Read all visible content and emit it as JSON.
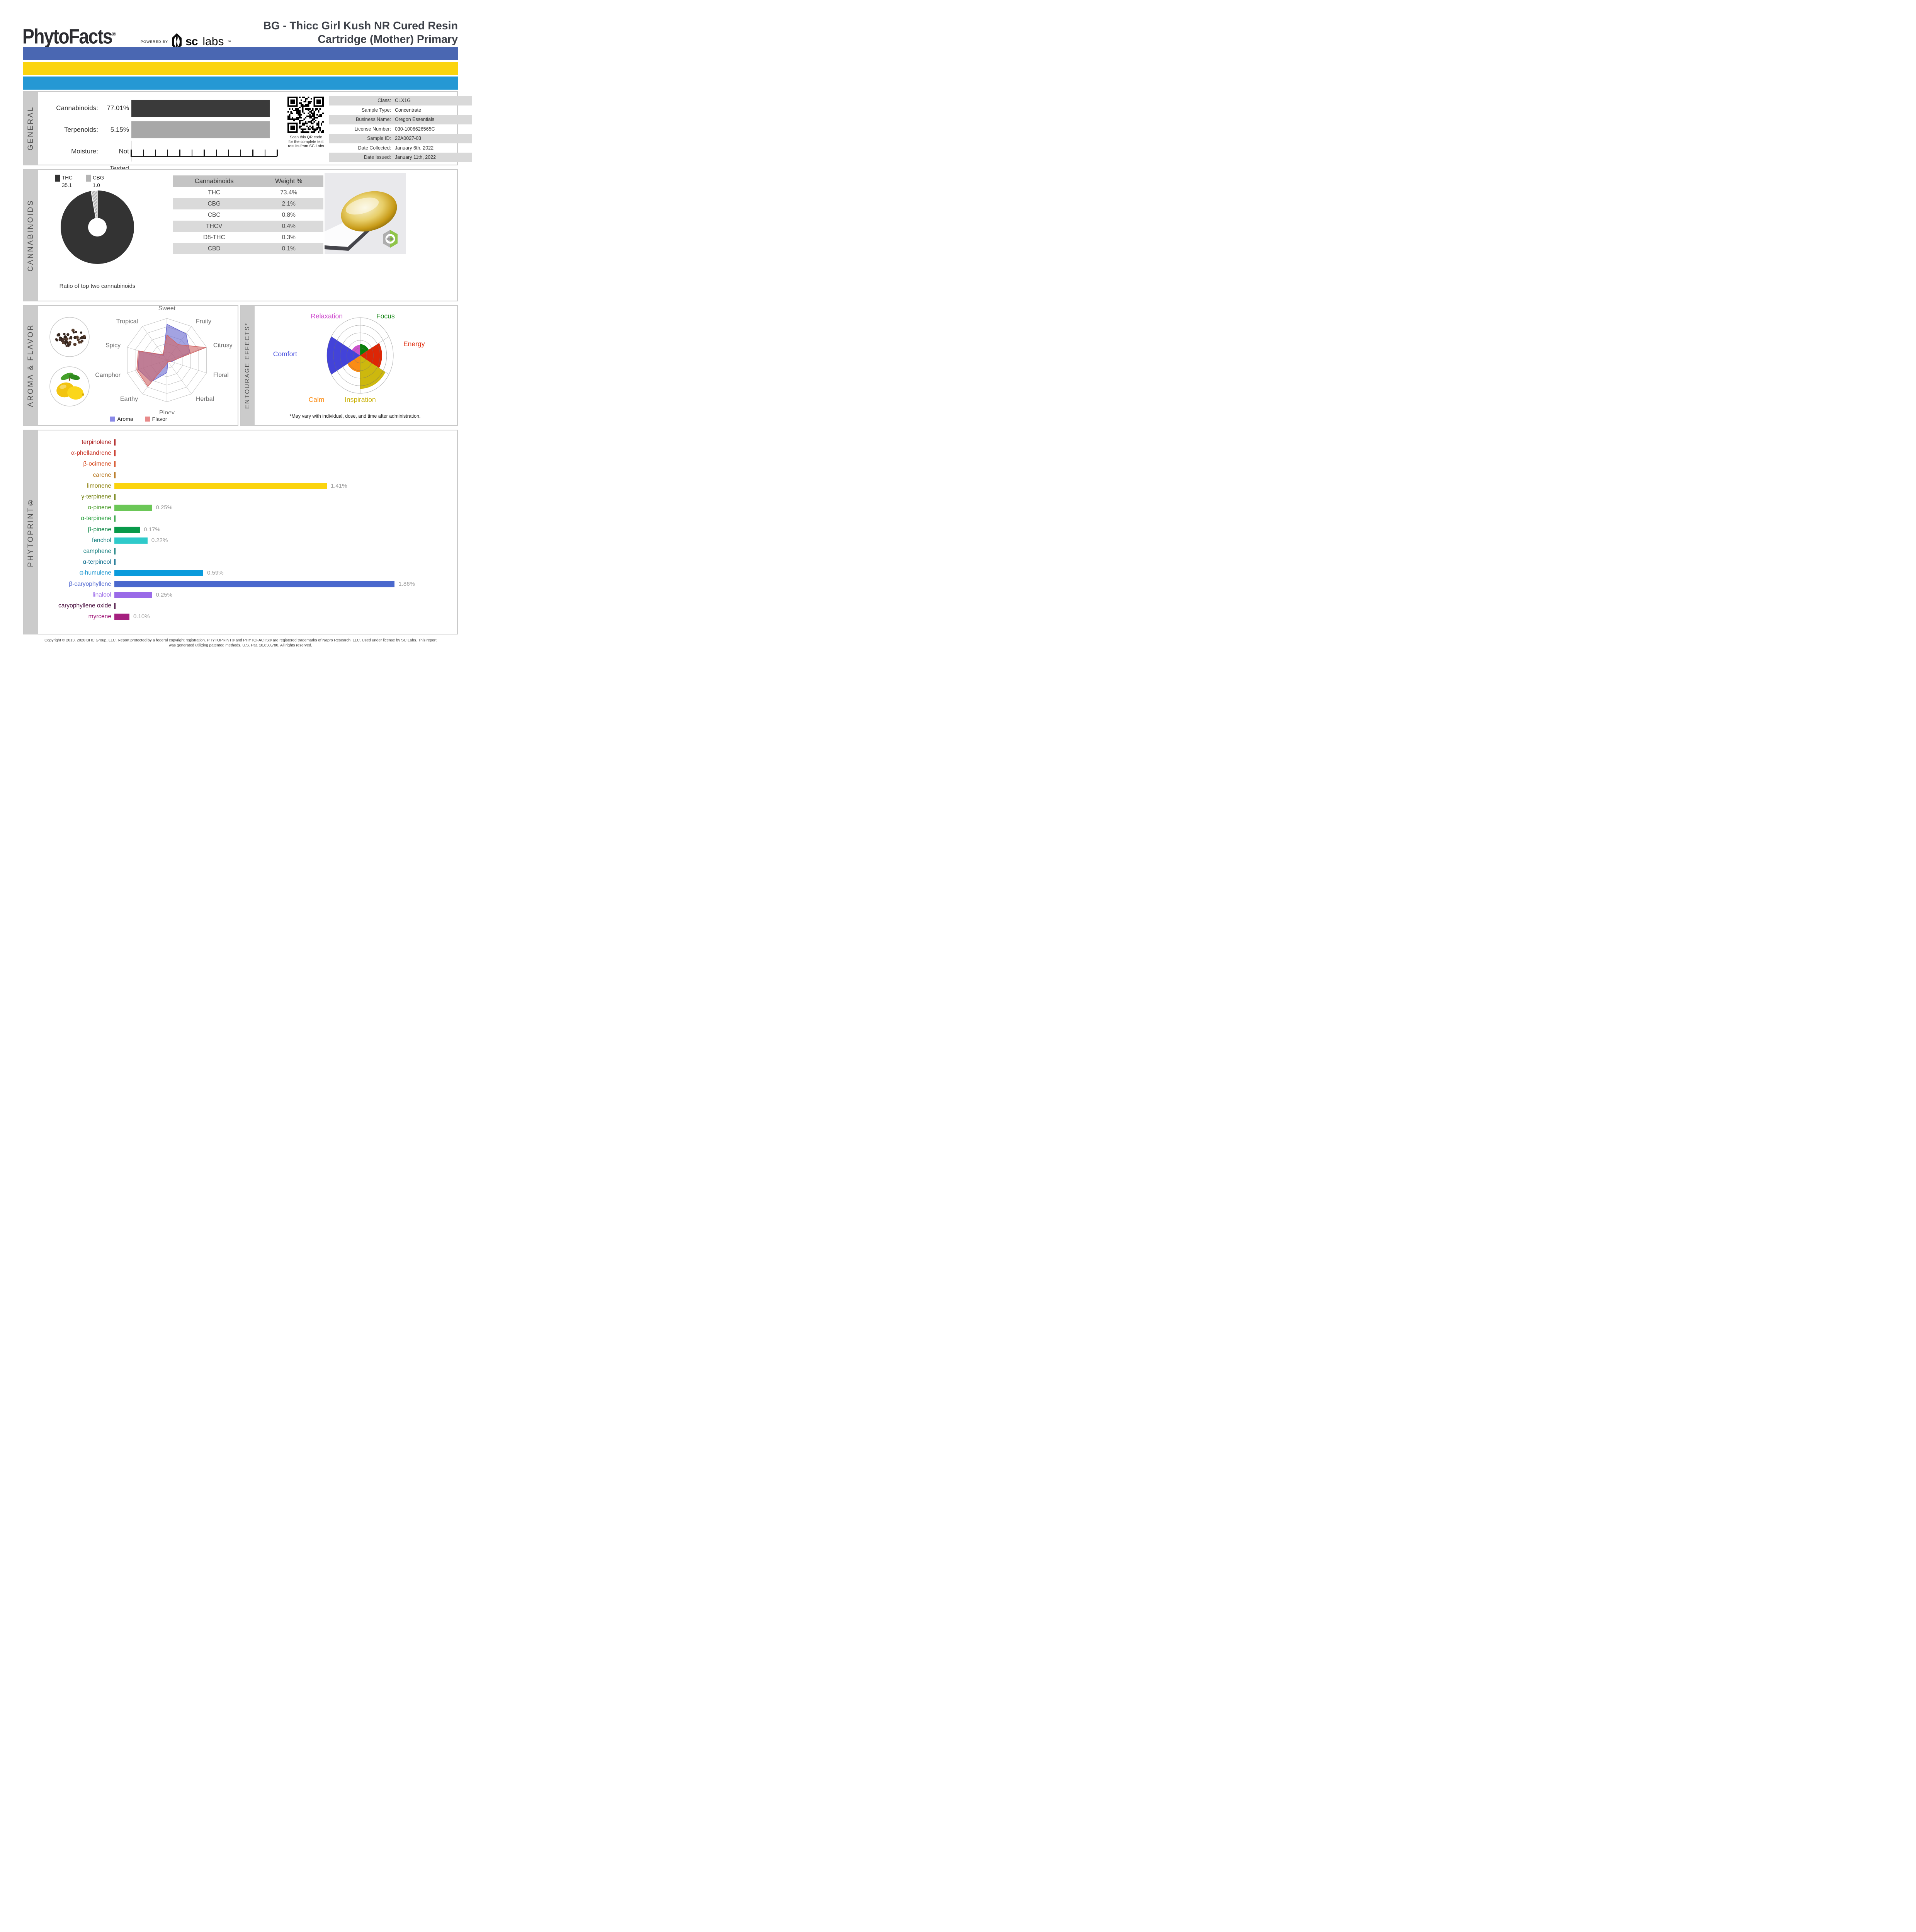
{
  "header": {
    "brand": "PhytoFacts",
    "brand_mark": "®",
    "powered_by": "POWERED BY",
    "sclabs": {
      "sc": "sc",
      "labs": "labs",
      "tm": "™"
    },
    "title_line1": "BG - Thicc Girl Kush NR Cured Resin",
    "title_line2": "Cartridge (Mother) Primary",
    "stripe_colors": [
      "#4a67b2",
      "#fbd40e",
      "#2598d4"
    ]
  },
  "general": {
    "section_label": "GENERAL",
    "rows": [
      {
        "label": "Cannabinoids:",
        "value": "77.01%"
      },
      {
        "label": "Terpenoids:",
        "value": "5.15%"
      },
      {
        "label": "Moisture:",
        "value": "Not Tested"
      }
    ],
    "bar_colors": [
      "#3a3a3a",
      "#a8a8a8"
    ],
    "qr_caption_lines": [
      "Scan this QR code",
      "for the complete test",
      "results from SC Labs"
    ],
    "info_rows": [
      {
        "label": "Class:",
        "value": "CLX1G"
      },
      {
        "label": "Sample Type:",
        "value": "Concentrate"
      },
      {
        "label": "Business Name:",
        "value": "Oregon Essentials"
      },
      {
        "label": "License Number:",
        "value": "030-1006626565C"
      },
      {
        "label": "Sample ID:",
        "value": "22A0027-03"
      },
      {
        "label": "Date Collected:",
        "value": "January 6th, 2022"
      },
      {
        "label": "Date Issued:",
        "value": "January 11th, 2022"
      }
    ]
  },
  "cannabinoids": {
    "section_label": "CANNABINOIDS",
    "legend": [
      {
        "name": "THC",
        "value": "35.1",
        "color": "#333333"
      },
      {
        "name": "CBG",
        "value": "1.0",
        "color": "#b5b5b5"
      }
    ],
    "donut": {
      "thc": 35.1,
      "cbg": 1.0,
      "thc_color": "#333333",
      "cbg_color": "#b5b5b5"
    },
    "caption": "Ratio of top two cannabinoids",
    "table": {
      "headers": [
        "Cannabinoids",
        "Weight %"
      ],
      "rows": [
        [
          "THC",
          "73.4%"
        ],
        [
          "CBG",
          "2.1%"
        ],
        [
          "CBC",
          "0.8%"
        ],
        [
          "THCV",
          "0.4%"
        ],
        [
          "D8-THC",
          "0.3%"
        ],
        [
          "CBD",
          "0.1%"
        ]
      ]
    },
    "photo_watermark": "sclabs"
  },
  "aroma_flavor": {
    "section_label": "AROMA & FLAVOR",
    "axes": [
      "Sweet",
      "Fruity",
      "Citrusy",
      "Floral",
      "Herbal",
      "Piney",
      "Earthy",
      "Camphor",
      "Spicy",
      "Tropical"
    ],
    "scale_max": 5,
    "series": [
      {
        "name": "Aroma",
        "color": "#6b6bd0",
        "values": [
          4.3,
          3.9,
          2.9,
          0.6,
          0.2,
          1.5,
          3.2,
          3.6,
          3.5,
          0.7
        ]
      },
      {
        "name": "Flavor",
        "color": "#d06666",
        "values": [
          3.0,
          2.3,
          4.9,
          0.5,
          0.2,
          0.4,
          3.9,
          3.8,
          3.6,
          0.8
        ]
      }
    ],
    "legend": [
      {
        "label": "Aroma",
        "swatch": "#8a8ae8"
      },
      {
        "label": "Flavor",
        "swatch": "#e88a8a"
      }
    ]
  },
  "entourage": {
    "section_label": "ENTOURAGE EFFECTS*",
    "scale_max": 5,
    "sectors": [
      {
        "label": "Focus",
        "value": 1.5,
        "fill": "#0a7e0a",
        "label_color": "#0a7e0a"
      },
      {
        "label": "Energy",
        "value": 3.3,
        "fill": "#dd2605",
        "label_color": "#dd2605"
      },
      {
        "label": "Inspiration",
        "value": 4.4,
        "fill": "#cdb80e",
        "label_color": "#c9b005"
      },
      {
        "label": "Calm",
        "value": 2.2,
        "fill": "#fb8c14",
        "label_color": "#fb8c14"
      },
      {
        "label": "Comfort",
        "value": 5.0,
        "fill": "#4343d9",
        "label_color": "#4d55e0"
      },
      {
        "label": "Relaxation",
        "value": 1.4,
        "fill": "#cc55cc",
        "label_color": "#cc44cc"
      }
    ],
    "footnote": "*May vary with individual, dose, and time after administration."
  },
  "phytoprint": {
    "section_label": "PHYTOPRINT®",
    "bars": [
      {
        "name": "terpinolene",
        "value": 0,
        "display": "",
        "label_color": "#a81414",
        "bar_color": "#a81414"
      },
      {
        "name": "α-phellandrene",
        "value": 0,
        "display": "",
        "label_color": "#c32314",
        "bar_color": "#c32314"
      },
      {
        "name": "β-ocimene",
        "value": 0,
        "display": "",
        "label_color": "#d4461a",
        "bar_color": "#d4461a"
      },
      {
        "name": "carene",
        "value": 0,
        "display": "",
        "label_color": "#b06a0a",
        "bar_color": "#b06a0a"
      },
      {
        "name": "limonene",
        "value": 1.41,
        "display": "1.41%",
        "label_color": "#8a7d05",
        "bar_color": "#fbd40e"
      },
      {
        "name": "γ-terpinene",
        "value": 0,
        "display": "",
        "label_color": "#6e7d0a",
        "bar_color": "#6e7d0a"
      },
      {
        "name": "α-pinene",
        "value": 0.25,
        "display": "0.25%",
        "label_color": "#4fa032",
        "bar_color": "#6bc757"
      },
      {
        "name": "α-terpinene",
        "value": 0,
        "display": "",
        "label_color": "#27a03c",
        "bar_color": "#27a03c"
      },
      {
        "name": "β-pinene",
        "value": 0.17,
        "display": "0.17%",
        "label_color": "#0a8544",
        "bar_color": "#089a4a"
      },
      {
        "name": "fenchol",
        "value": 0.22,
        "display": "0.22%",
        "label_color": "#107c7c",
        "bar_color": "#2fcaca"
      },
      {
        "name": "camphene",
        "value": 0,
        "display": "",
        "label_color": "#107c7c",
        "bar_color": "#107c7c"
      },
      {
        "name": "α-terpineol",
        "value": 0,
        "display": "",
        "label_color": "#0a6b8c",
        "bar_color": "#0a6b8c"
      },
      {
        "name": "α-humulene",
        "value": 0.59,
        "display": "0.59%",
        "label_color": "#0b8ecb",
        "bar_color": "#0b9bdc"
      },
      {
        "name": "β-caryophyllene",
        "value": 1.86,
        "display": "1.86%",
        "label_color": "#4a63cf",
        "bar_color": "#4a68cd"
      },
      {
        "name": "linalool",
        "value": 0.25,
        "display": "0.25%",
        "label_color": "#9a68e8",
        "bar_color": "#9a6ae8"
      },
      {
        "name": "caryophyllene oxide",
        "value": 0,
        "display": "",
        "label_color": "#4a1040",
        "bar_color": "#4a1040"
      },
      {
        "name": "myrcene",
        "value": 0.1,
        "display": "0.10%",
        "label_color": "#a01878",
        "bar_color": "#a5207f"
      }
    ]
  },
  "footer": {
    "line1": "Copyright © 2013, 2020 BHC Group, LLC. Report protected by a federal copyright registration. PHYTOPRINT® and PHYTOFACTS® are registered trademarks of Napro Research, LLC. Used under license by SC Labs. This report",
    "line2": "was generated utilizing patented methods. U.S. Pat. 10,830,780. All rights reserved."
  },
  "chart_data": [
    {
      "type": "pie",
      "title": "Ratio of top two cannabinoids",
      "categories": [
        "THC",
        "CBG"
      ],
      "values": [
        35.1,
        1.0
      ]
    },
    {
      "type": "line",
      "subtype": "radar",
      "title": "Aroma & Flavor",
      "categories": [
        "Sweet",
        "Fruity",
        "Citrusy",
        "Floral",
        "Herbal",
        "Piney",
        "Earthy",
        "Camphor",
        "Spicy",
        "Tropical"
      ],
      "series": [
        {
          "name": "Aroma",
          "values": [
            4.3,
            3.9,
            2.9,
            0.6,
            0.2,
            1.5,
            3.2,
            3.6,
            3.5,
            0.7
          ]
        },
        {
          "name": "Flavor",
          "values": [
            3.0,
            2.3,
            4.9,
            0.5,
            0.2,
            0.4,
            3.9,
            3.8,
            3.6,
            0.8
          ]
        }
      ],
      "ylim": [
        0,
        5
      ],
      "legend_position": "bottom"
    },
    {
      "type": "bar",
      "subtype": "polar",
      "title": "Entourage Effects",
      "categories": [
        "Focus",
        "Energy",
        "Inspiration",
        "Calm",
        "Comfort",
        "Relaxation"
      ],
      "values": [
        1.5,
        3.3,
        4.4,
        2.2,
        5.0,
        1.4
      ],
      "ylim": [
        0,
        5
      ]
    },
    {
      "type": "bar",
      "subtype": "horizontal",
      "title": "PHYTOPRINT terpenoids (%)",
      "categories": [
        "terpinolene",
        "α-phellandrene",
        "β-ocimene",
        "carene",
        "limonene",
        "γ-terpinene",
        "α-pinene",
        "α-terpinene",
        "β-pinene",
        "fenchol",
        "camphene",
        "α-terpineol",
        "α-humulene",
        "β-caryophyllene",
        "linalool",
        "caryophyllene oxide",
        "myrcene"
      ],
      "values": [
        0,
        0,
        0,
        0,
        1.41,
        0,
        0.25,
        0,
        0.17,
        0.22,
        0,
        0,
        0.59,
        1.86,
        0.25,
        0,
        0.1
      ],
      "xlim": [
        0,
        2.3
      ]
    }
  ]
}
